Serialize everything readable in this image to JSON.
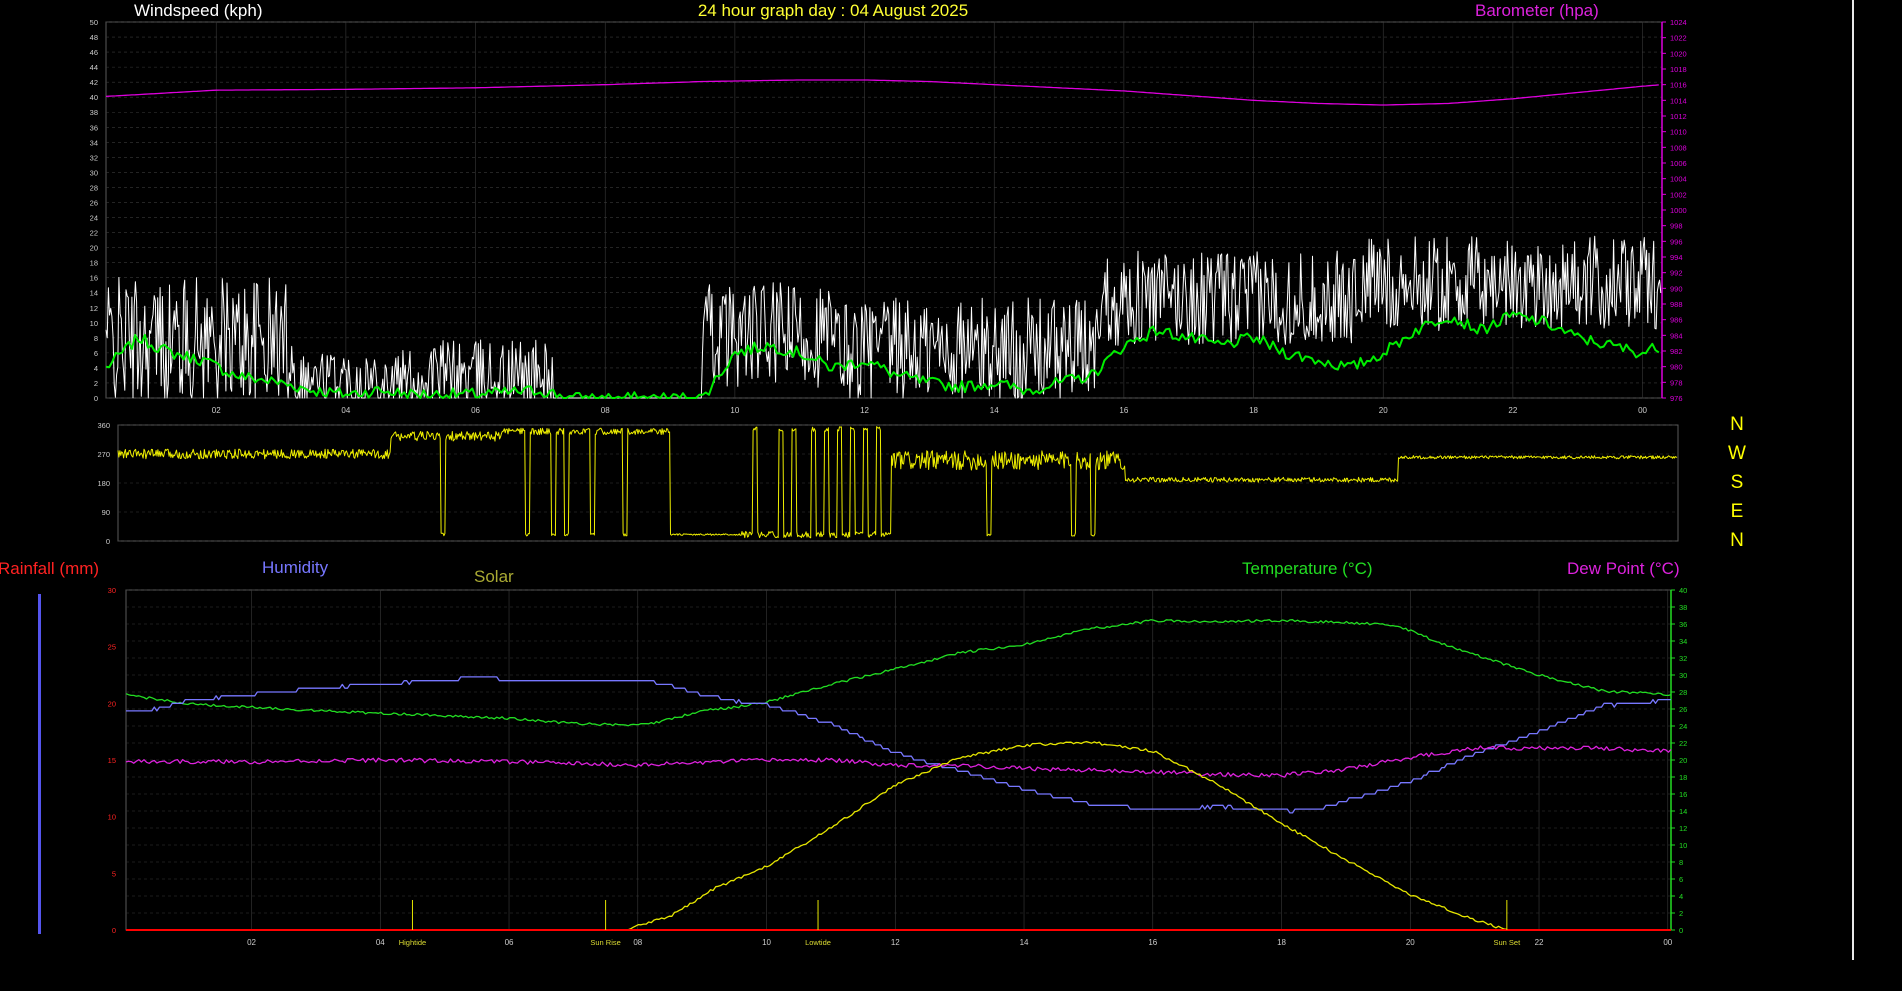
{
  "page": {
    "title": "24 hour graph day : 04 August 2025",
    "colors": {
      "background": "#000000",
      "grid": "#3a3a3a",
      "windspeed": "#ffffff",
      "windavg": "#00ee00",
      "barometer": "#dd00dd",
      "winddir": "#eeee00",
      "rainfall": "#ff0000",
      "humidity": "#7777ff",
      "solar": "#e6e600",
      "temperature": "#22dd22",
      "dewpoint": "#dd22dd"
    }
  },
  "compass": [
    "N",
    "W",
    "S",
    "E",
    "N"
  ],
  "chart_data": [
    {
      "type": "line",
      "title": "24 hour graph day : 04 August 2025",
      "ylabel_left": "Windspeed (kph)",
      "ylabel_right": "Barometer (hpa)",
      "ylim_left": [
        0,
        50
      ],
      "ylim_right": [
        976,
        1024
      ],
      "yticks_left": [
        0,
        2,
        4,
        6,
        8,
        10,
        12,
        14,
        16,
        18,
        20,
        22,
        24,
        26,
        28,
        30,
        32,
        34,
        36,
        38,
        40,
        42,
        44,
        46,
        48,
        50
      ],
      "yticks_right": [
        976,
        978,
        980,
        982,
        984,
        986,
        988,
        990,
        992,
        994,
        996,
        998,
        1000,
        1002,
        1004,
        1006,
        1008,
        1010,
        1012,
        1014,
        1016,
        1018,
        1020,
        1022,
        1024
      ],
      "xlim": [
        0.3,
        24.3
      ],
      "xticks": [
        "02",
        "04",
        "06",
        "08",
        "10",
        "12",
        "14",
        "16",
        "18",
        "20",
        "22",
        "00"
      ],
      "xtick_hours": [
        2,
        4,
        6,
        8,
        10,
        12,
        14,
        16,
        18,
        20,
        22,
        24
      ],
      "grid": true,
      "series": [
        {
          "name": "Windspeed (kph)",
          "axis": "left",
          "style": "gust",
          "segments": [
            {
              "start": 0.3,
              "end": 3.2,
              "base": 6,
              "amp": 12,
              "min": 0
            },
            {
              "start": 3.2,
              "end": 5.3,
              "base": 1.5,
              "amp": 6,
              "min": 0
            },
            {
              "start": 5.3,
              "end": 7.2,
              "base": 2,
              "amp": 7,
              "min": 0
            },
            {
              "start": 7.2,
              "end": 9.5,
              "base": 0,
              "amp": 0,
              "min": 0
            },
            {
              "start": 9.5,
              "end": 11.5,
              "base": 7,
              "amp": 10,
              "min": 0
            },
            {
              "start": 11.5,
              "end": 15.6,
              "base": 5,
              "amp": 10,
              "min": 0
            },
            {
              "start": 15.6,
              "end": 19.6,
              "base": 12,
              "amp": 9,
              "min": 0
            },
            {
              "start": 19.6,
              "end": 24.3,
              "base": 14,
              "amp": 9,
              "min": 5
            }
          ]
        },
        {
          "name": "Average wind (kph)",
          "axis": "left",
          "x": [
            0.3,
            0.8,
            1.3,
            1.8,
            2.3,
            3.0,
            3.5,
            4.0,
            4.5,
            5.0,
            6.0,
            7.0,
            7.5,
            8.5,
            9.5,
            10.0,
            10.5,
            11.0,
            11.5,
            12.0,
            12.5,
            13.0,
            13.5,
            14.0,
            14.5,
            15.0,
            15.5,
            16.0,
            16.5,
            17.0,
            17.5,
            18.0,
            18.5,
            19.0,
            19.5,
            20.0,
            20.5,
            21.0,
            21.5,
            22.0,
            22.5,
            23.0,
            23.5,
            24.0,
            24.3
          ],
          "y": [
            4,
            8,
            6,
            5,
            3,
            2,
            1,
            0.5,
            1,
            0.5,
            0.5,
            1,
            0,
            0,
            0,
            6,
            7,
            6,
            4,
            5,
            3,
            2,
            1.5,
            2,
            1,
            2,
            3,
            7,
            9,
            8,
            7,
            8,
            6,
            5,
            4,
            6,
            9,
            11,
            9,
            11,
            10,
            8,
            7,
            6,
            7
          ]
        },
        {
          "name": "Barometer (hpa)",
          "axis": "right",
          "x": [
            0.3,
            2,
            4,
            6,
            8,
            9.5,
            11,
            12,
            13,
            14,
            15,
            16,
            17,
            18,
            19,
            20,
            21,
            22,
            23,
            24,
            24.3
          ],
          "y": [
            1014.5,
            1015.3,
            1015.4,
            1015.6,
            1016.0,
            1016.4,
            1016.6,
            1016.6,
            1016.4,
            1016.0,
            1015.6,
            1015.2,
            1014.6,
            1014.0,
            1013.6,
            1013.4,
            1013.6,
            1014.2,
            1015.0,
            1015.8,
            1016.0
          ]
        }
      ]
    },
    {
      "type": "line",
      "title": "",
      "ylabel": "",
      "ylim": [
        0,
        360
      ],
      "yticks": [
        0,
        90,
        180,
        270,
        360
      ],
      "xlim": [
        0.3,
        24.3
      ],
      "grid": true,
      "series": [
        {
          "name": "Wind direction",
          "style": "direction",
          "segments": [
            {
              "start": 0.3,
              "end": 4.5,
              "base": 270,
              "amp": 30,
              "flips": []
            },
            {
              "start": 4.5,
              "end": 6.2,
              "base": 325,
              "amp": 30,
              "flips": [
                5.3
              ]
            },
            {
              "start": 6.2,
              "end": 8.8,
              "base": 340,
              "amp": 20,
              "flips": [
                6.6,
                7.0,
                7.2,
                7.6,
                8.1
              ]
            },
            {
              "start": 8.8,
              "end": 9.9,
              "base": 20,
              "amp": 5,
              "flips": []
            },
            {
              "start": 9.9,
              "end": 12.2,
              "base": 20,
              "amp": 20,
              "flips": [
                10.1,
                10.5,
                10.7,
                11.0,
                11.2,
                11.4,
                11.6,
                11.8,
                12.0
              ]
            },
            {
              "start": 12.2,
              "end": 15.8,
              "base": 250,
              "amp": 60,
              "flips": [
                13.7,
                15.0,
                15.3
              ]
            },
            {
              "start": 15.8,
              "end": 20.0,
              "base": 190,
              "amp": 15,
              "flips": []
            },
            {
              "start": 20.0,
              "end": 24.3,
              "base": 260,
              "amp": 10,
              "flips": []
            }
          ]
        }
      ]
    },
    {
      "type": "line",
      "title": "",
      "legend": [
        "Rainfall (mm)",
        "Humidity",
        "Solar",
        "Temperature (°C)",
        "Dew Point (°C)"
      ],
      "ylabel_left": "Rainfall (mm)",
      "ylabel_right": "Temperature (°C)",
      "ylim_left": [
        0,
        30
      ],
      "ylim_right": [
        0,
        40
      ],
      "yticks_left": [
        0,
        5,
        10,
        15,
        20,
        25,
        30
      ],
      "yticks_right": [
        0,
        2,
        4,
        6,
        8,
        10,
        12,
        14,
        16,
        18,
        20,
        22,
        24,
        26,
        28,
        30,
        32,
        34,
        36,
        38,
        40
      ],
      "xlim": [
        0.05,
        24.05
      ],
      "xticks": [
        "02",
        "04",
        "06",
        "08",
        "10",
        "12",
        "14",
        "16",
        "18",
        "20",
        "22",
        "00"
      ],
      "xtick_hours": [
        2,
        4,
        6,
        8,
        10,
        12,
        14,
        16,
        18,
        20,
        22,
        24
      ],
      "grid": true,
      "series": [
        {
          "name": "Temperature (°C)",
          "axis": "right",
          "x": [
            0.05,
            1,
            2,
            3,
            4,
            5,
            6,
            7,
            7.8,
            8.3,
            9,
            9.5,
            10,
            11,
            12,
            13,
            14,
            15,
            16,
            17,
            18,
            19,
            19.8,
            20.5,
            21,
            22,
            23,
            24.05
          ],
          "y": [
            27.7,
            26.6,
            26.2,
            25.8,
            25.5,
            25.2,
            24.9,
            24.3,
            24.1,
            24.4,
            25.8,
            26.2,
            26.8,
            28.9,
            30.7,
            32.6,
            33.6,
            35.4,
            36.4,
            36.3,
            36.4,
            36.2,
            35.8,
            33.7,
            32.4,
            30.0,
            28.1,
            27.7
          ]
        },
        {
          "name": "Humidity",
          "axis": "left",
          "x": [
            0.05,
            0.5,
            1,
            2,
            3,
            4,
            5,
            5.5,
            6,
            7,
            8,
            8.5,
            9,
            9.5,
            10,
            11,
            12,
            13,
            14,
            15,
            16,
            17,
            18,
            18.5,
            19,
            20,
            21,
            22,
            23,
            24.05
          ],
          "y": [
            19.3,
            19.5,
            20.2,
            20.8,
            21.3,
            21.7,
            22.0,
            22.4,
            22.0,
            22.0,
            22.0,
            21.6,
            20.8,
            20.2,
            19.9,
            18.2,
            15.6,
            14.1,
            12.4,
            11.2,
            10.6,
            10.9,
            10.5,
            10.6,
            11.4,
            13.1,
            15.5,
            17.5,
            19.8,
            20.3
          ]
        },
        {
          "name": "Dew Point (°C)",
          "axis": "right",
          "x": [
            0.05,
            2,
            4,
            6,
            8,
            10,
            11,
            12,
            13,
            14,
            15,
            16,
            17,
            18,
            19,
            20,
            21,
            22,
            23,
            24.05
          ],
          "y": [
            19.8,
            19.8,
            20.0,
            19.8,
            19.4,
            20.0,
            20.0,
            19.4,
            19.4,
            19.0,
            18.8,
            18.6,
            18.3,
            18.2,
            18.9,
            20.3,
            21.4,
            21.4,
            21.4,
            21.0
          ]
        },
        {
          "name": "Solar",
          "axis": "left",
          "x": [
            0.05,
            7.5,
            7.8,
            8.5,
            9.2,
            10,
            11,
            12,
            13,
            14,
            15,
            16,
            17,
            18,
            19,
            20,
            21,
            21.5,
            24.05
          ],
          "y": [
            0,
            0,
            0,
            1.2,
            3.7,
            5.6,
            9.0,
            12.8,
            15.2,
            16.3,
            16.6,
            15.8,
            12.9,
            9.4,
            6.2,
            3.1,
            0.9,
            0,
            0
          ]
        },
        {
          "name": "Rainfall (mm)",
          "axis": "left",
          "x": [
            0.05,
            24.05
          ],
          "y": [
            0,
            0
          ]
        }
      ],
      "annotations": [
        {
          "hour": 4.5,
          "label": "Hightide"
        },
        {
          "hour": 7.5,
          "label": "Sun Rise"
        },
        {
          "hour": 10.8,
          "label": "Lowtide"
        },
        {
          "hour": 21.5,
          "label": "Sun Set"
        }
      ]
    }
  ]
}
